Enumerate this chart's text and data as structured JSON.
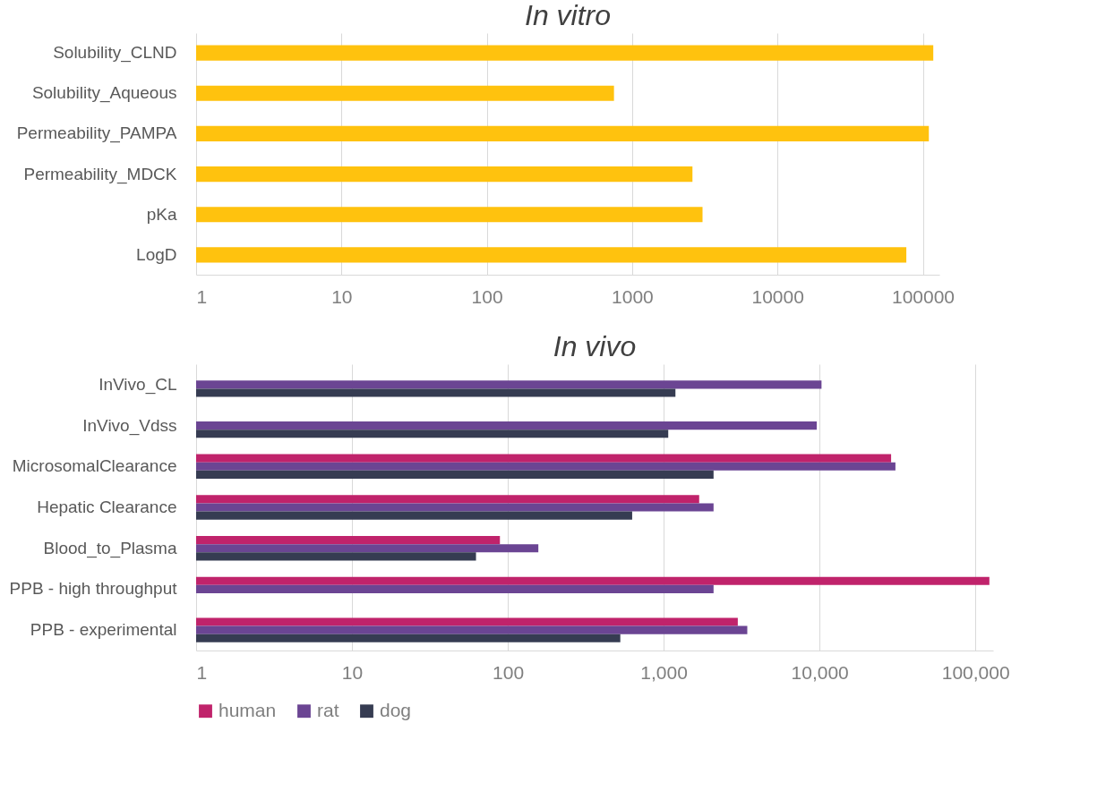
{
  "chart_data": [
    {
      "type": "bar",
      "orientation": "horizontal",
      "title": "In vitro",
      "categories": [
        "Solubility_CLND",
        "Solubility_Aqueous",
        "Permeability_PAMPA",
        "Permeability_MDCK",
        "pKa",
        "LogD"
      ],
      "series": [
        {
          "color": "#ffc20e",
          "values": [
            118000,
            750,
            110000,
            2600,
            3050,
            77000
          ]
        }
      ],
      "xlim": [
        1,
        130000
      ],
      "xticks": [
        1,
        10,
        100,
        1000,
        10000,
        100000
      ],
      "log": "x",
      "grid": "x"
    },
    {
      "type": "bar",
      "orientation": "horizontal",
      "title": "In vivo",
      "categories": [
        "InVivo_CL",
        "InVivo_Vdss",
        "MicrosomalClearance",
        "Hepatic Clearance",
        "Blood_to_Plasma",
        "PPB - high throughput",
        "PPB - experimental"
      ],
      "series": [
        {
          "name": "human",
          "color": "#c0236b",
          "values": [
            null,
            null,
            28800,
            1690,
            89,
            123000,
            2990
          ]
        },
        {
          "name": "rat",
          "color": "#6b4593",
          "values": [
            10300,
            9600,
            30700,
            2090,
            157,
            2090,
            3440
          ]
        },
        {
          "name": "dog",
          "color": "#363c52",
          "values": [
            1190,
            1070,
            2090,
            628,
            62.5,
            null,
            527
          ]
        }
      ],
      "xlim": [
        1,
        130000
      ],
      "xticks": [
        1,
        10,
        100,
        {
          "value": 1000,
          "label": "1,000"
        },
        {
          "value": 10000,
          "label": "10,000"
        },
        {
          "value": 100000,
          "label": "100,000"
        }
      ],
      "log": "x",
      "grid": "x",
      "legend": "bottom"
    }
  ]
}
